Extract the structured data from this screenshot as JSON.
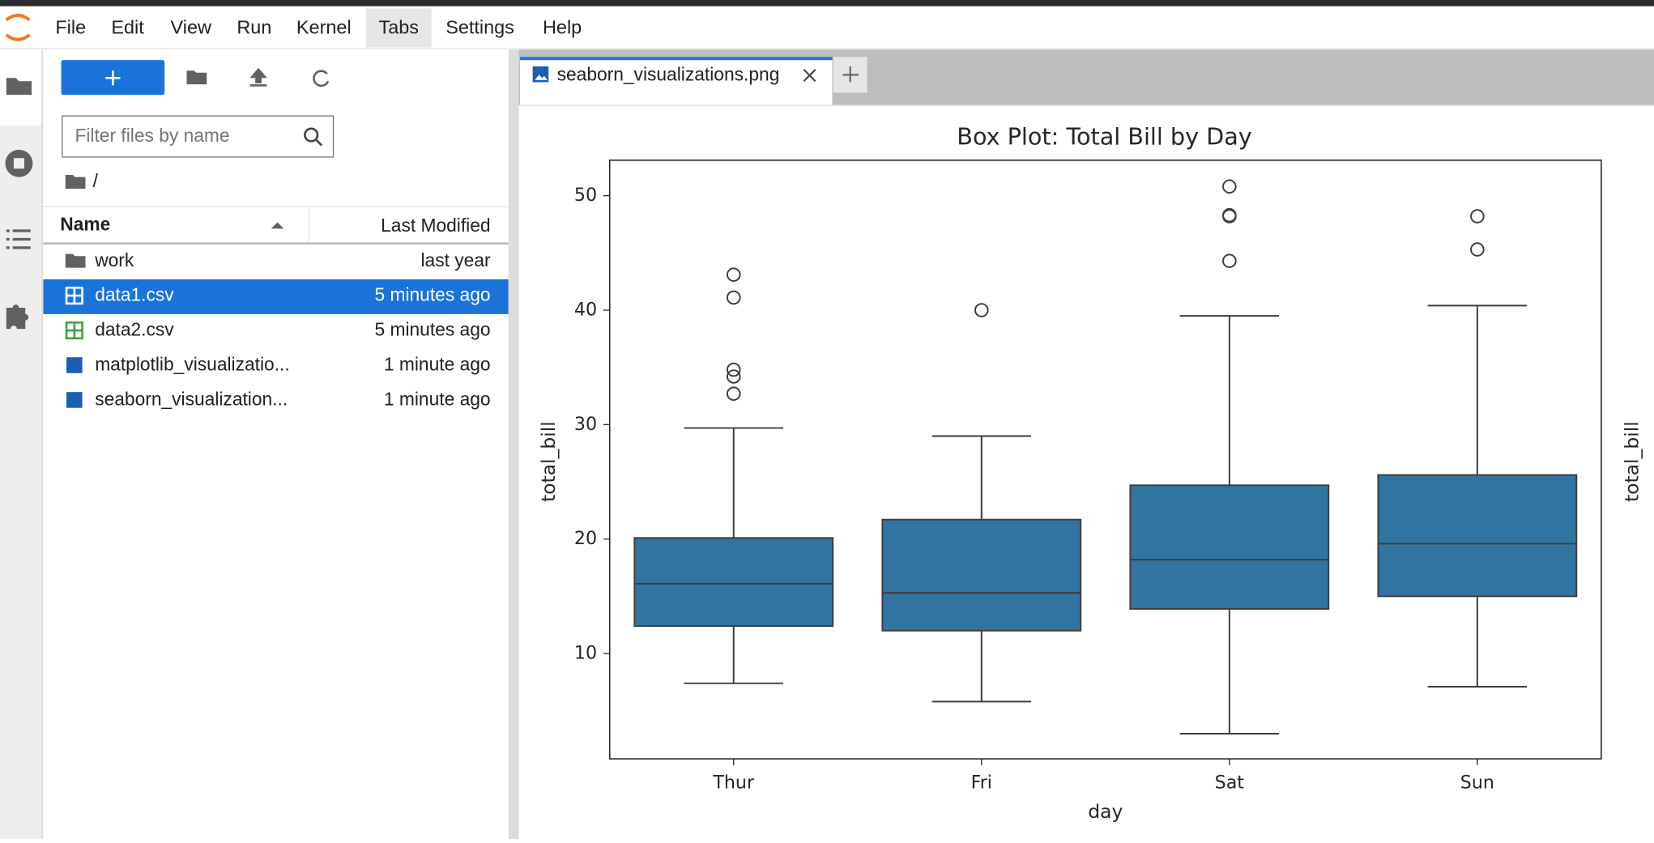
{
  "menu": [
    "File",
    "Edit",
    "View",
    "Run",
    "Kernel",
    "Tabs",
    "Settings",
    "Help"
  ],
  "file_browser": {
    "filter_placeholder": "Filter files by name",
    "path": "/",
    "columns": {
      "name": "Name",
      "modified": "Last Modified"
    },
    "files": [
      {
        "name": "work",
        "modified": "last year"
      },
      {
        "name": "data1.csv",
        "modified": "5 minutes ago"
      },
      {
        "name": "data2.csv",
        "modified": "5 minutes ago"
      },
      {
        "name": "matplotlib_visualizatio...",
        "modified": "1 minute ago"
      },
      {
        "name": "seaborn_visualization...",
        "modified": "1 minute ago"
      }
    ]
  },
  "tab": {
    "title": "seaborn_visualizations.png"
  },
  "partial_chart": {
    "ylabel": "total_bill"
  },
  "chart_data": {
    "type": "box",
    "title": "Box Plot: Total Bill by Day",
    "xlabel": "day",
    "ylabel": "total_bill",
    "color": "#3274a1",
    "categories": [
      "Thur",
      "Fri",
      "Sat",
      "Sun"
    ],
    "boxes": [
      {
        "whisker_low": 7.4,
        "q1": 12.4,
        "median": 16.1,
        "q3": 20.1,
        "whisker_high": 29.7,
        "outliers": [
          32.7,
          34.2,
          34.8,
          41.1,
          43.1
        ]
      },
      {
        "whisker_low": 5.8,
        "q1": 12.0,
        "median": 15.3,
        "q3": 21.7,
        "whisker_high": 29.0,
        "outliers": [
          40.0
        ]
      },
      {
        "whisker_low": 3.0,
        "q1": 13.9,
        "median": 18.2,
        "q3": 24.7,
        "whisker_high": 39.5,
        "outliers": [
          44.3,
          48.2,
          48.3,
          50.8
        ]
      },
      {
        "whisker_low": 7.1,
        "q1": 15.0,
        "median": 19.6,
        "q3": 25.6,
        "whisker_high": 40.4,
        "outliers": [
          45.3,
          48.2
        ]
      }
    ],
    "ylim": [
      0.8,
      53.1
    ],
    "yticks": [
      10,
      20,
      30,
      40,
      50
    ]
  }
}
